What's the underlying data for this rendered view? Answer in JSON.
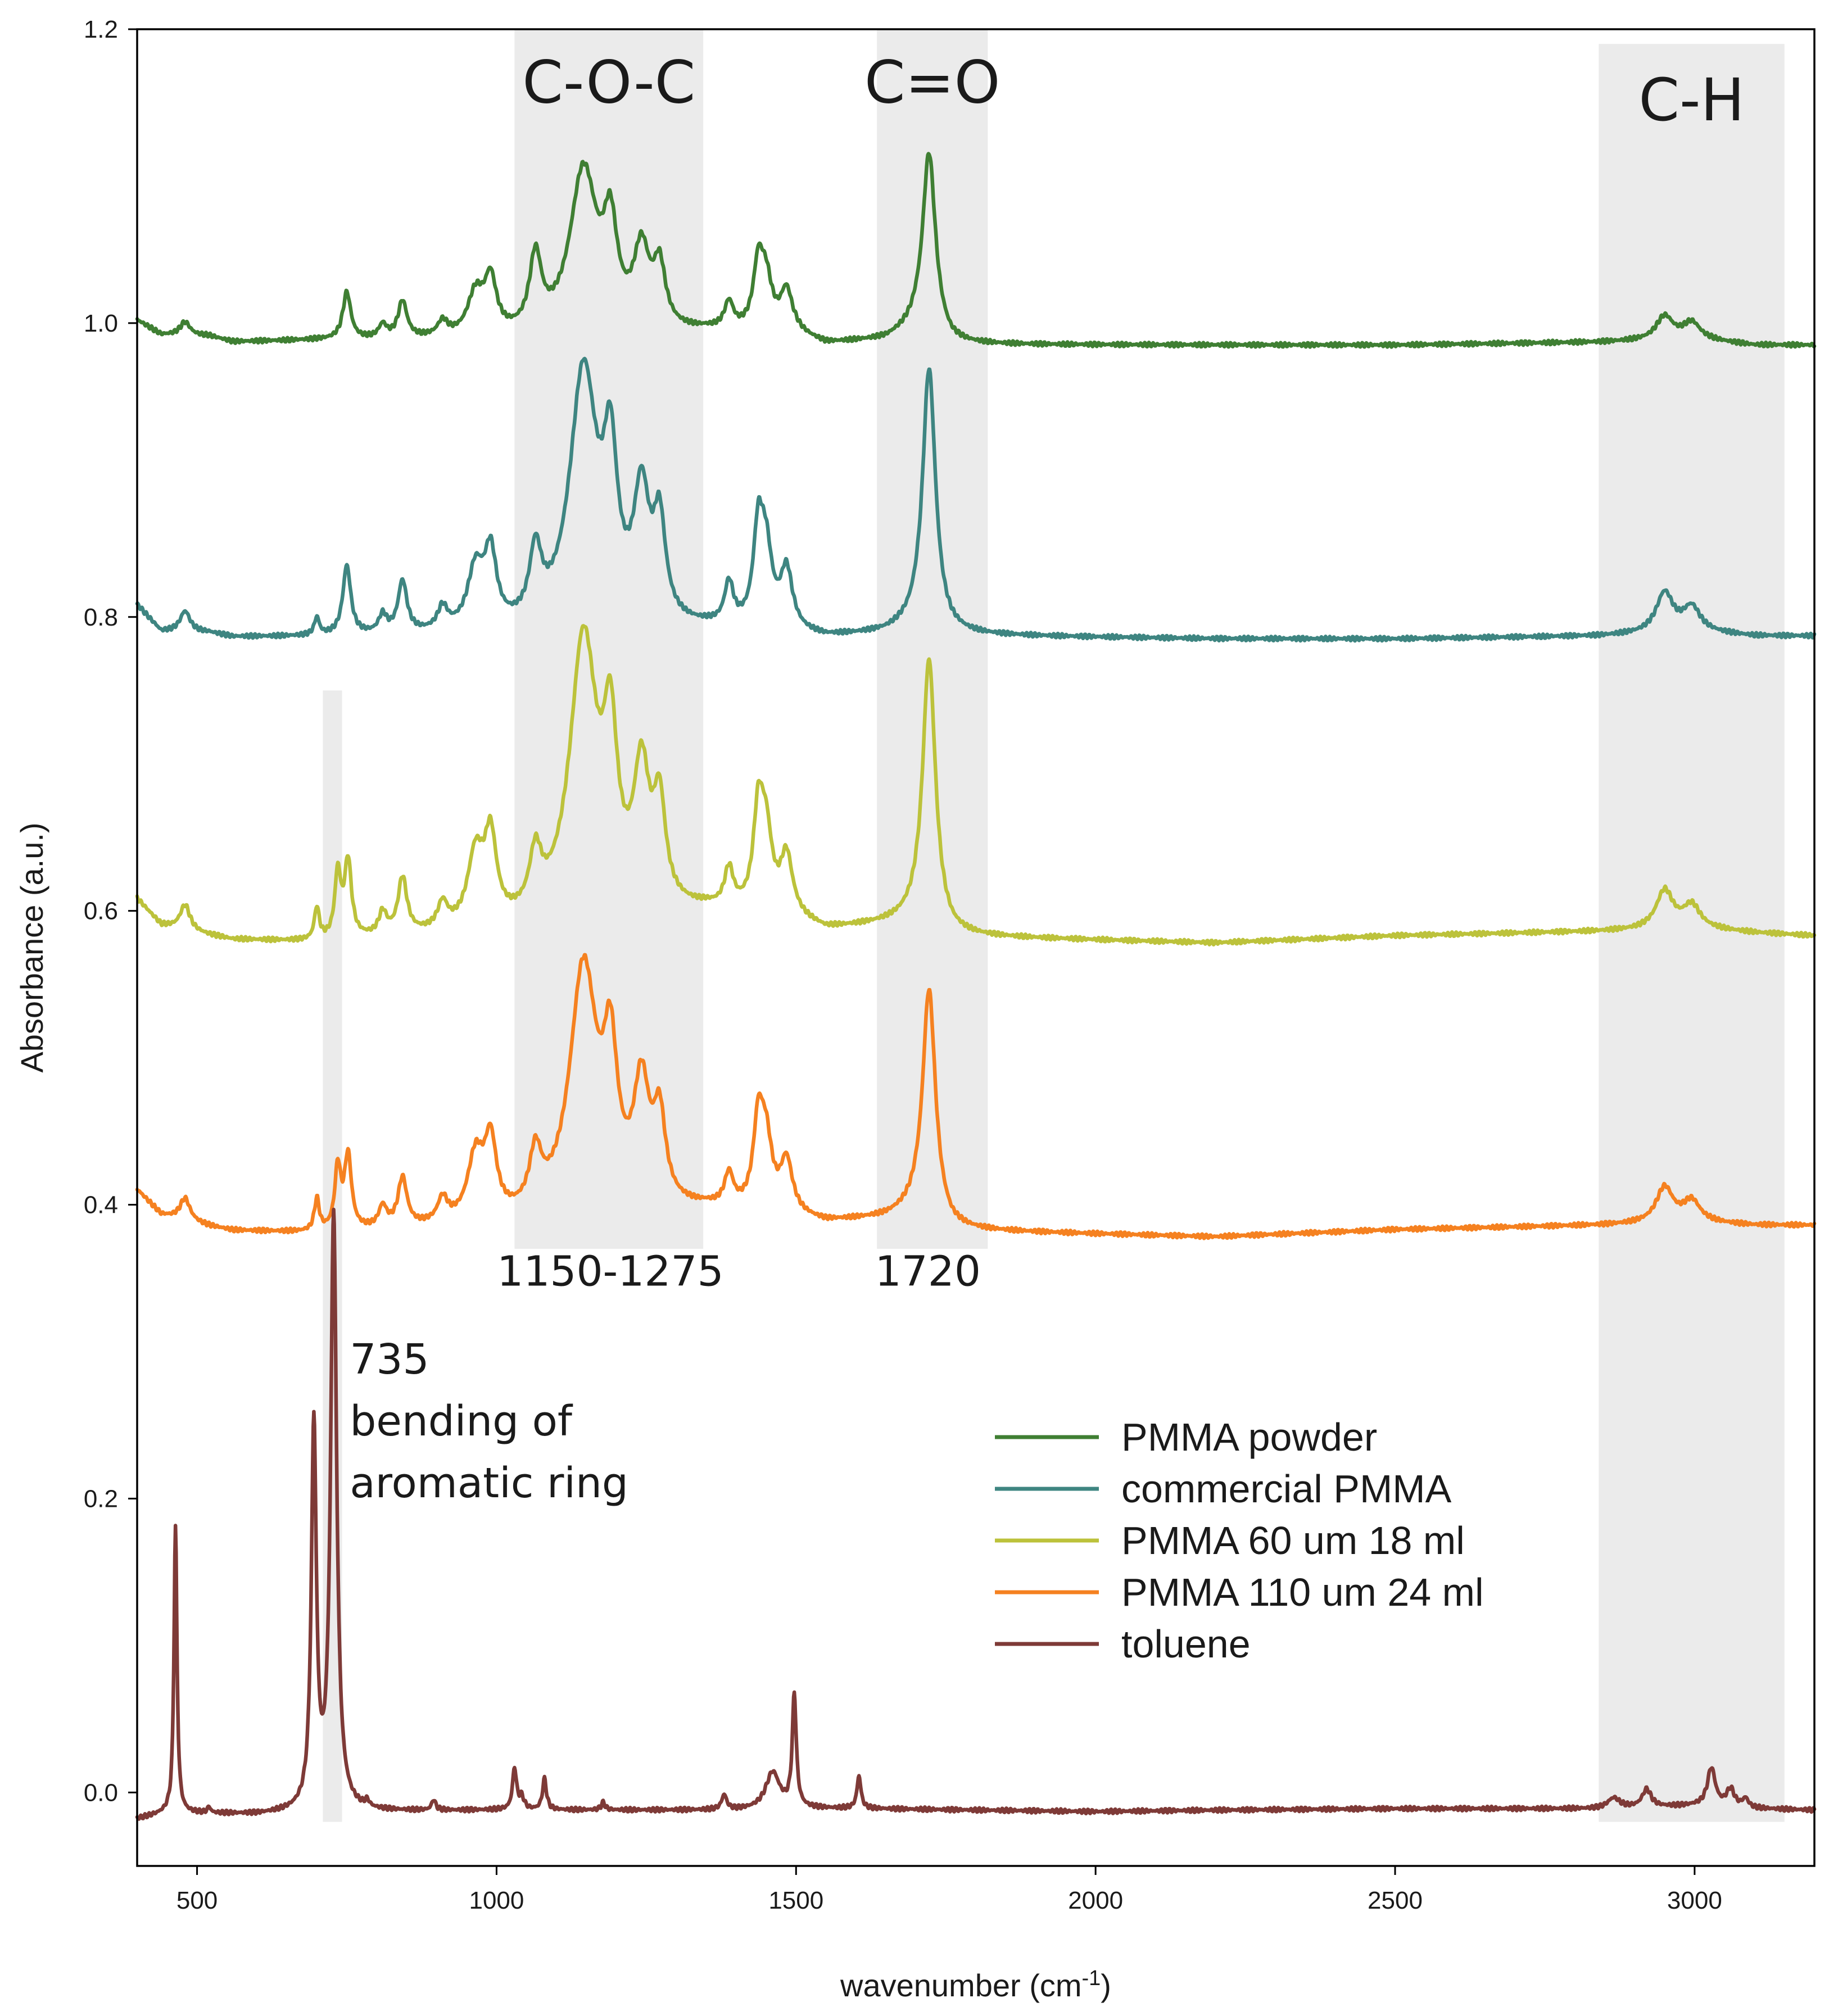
{
  "chart_data": {
    "type": "line",
    "title": "",
    "xlabel": "wavenumber (cm",
    "xlabel_sup": "-1",
    "xlabel_close": ")",
    "ylabel": "Absorbance (a.u.)",
    "xlim": [
      400,
      3200
    ],
    "ylim": [
      -0.05,
      1.2
    ],
    "x_ticks": [
      500,
      1000,
      1500,
      2000,
      2500,
      3000
    ],
    "x_tick_labels": [
      "500",
      "1000",
      "1500",
      "2000",
      "2500",
      "3000"
    ],
    "y_ticks": [
      0.0,
      0.2,
      0.4,
      0.6,
      0.8,
      1.0,
      1.2
    ],
    "y_tick_labels": [
      "0.0",
      "0.2",
      "0.4",
      "0.6",
      "0.8",
      "1.0",
      "1.2"
    ],
    "grid": false,
    "legend_position": "center-right",
    "shaded_regions": [
      {
        "name": "c-o-c",
        "label": "C-O-C",
        "x0": 1030,
        "x1": 1345,
        "y0": 0.37,
        "y1": 1.2
      },
      {
        "name": "c-o",
        "label": "C=O",
        "x0": 1635,
        "x1": 1820,
        "y0": 0.37,
        "y1": 1.2
      },
      {
        "name": "c-h",
        "label": "C-H",
        "x0": 2840,
        "x1": 3150,
        "y0": -0.02,
        "y1": 1.19
      },
      {
        "name": "aromatic",
        "label": "",
        "x0": 710,
        "x1": 742,
        "y0": -0.02,
        "y1": 0.75
      }
    ],
    "annotations": [
      {
        "name": "range-1150-1275",
        "text": "1150-1275",
        "x": 1190,
        "y": 0.345
      },
      {
        "name": "peak-1720",
        "text": "1720",
        "x": 1720,
        "y": 0.345
      },
      {
        "name": "note-735-line1",
        "text": "735",
        "x": 755,
        "y": 0.285
      },
      {
        "name": "note-735-line2",
        "text": "bending of",
        "x": 755,
        "y": 0.243
      },
      {
        "name": "note-735-line3",
        "text": "aromatic ring",
        "x": 755,
        "y": 0.201
      }
    ],
    "series": [
      {
        "name": "PMMA powder",
        "color": "#3f7f33",
        "baseline": [
          [
            400,
            1.002
          ],
          [
            440,
            0.992
          ],
          [
            520,
            0.991
          ],
          [
            560,
            0.987
          ],
          [
            700,
            0.988
          ],
          [
            1000,
            0.988
          ],
          [
            1200,
            0.988
          ],
          [
            1350,
            0.993
          ],
          [
            1500,
            0.991
          ],
          [
            1550,
            0.985
          ],
          [
            1650,
            0.988
          ],
          [
            1700,
            0.995
          ],
          [
            1760,
            0.985
          ],
          [
            2200,
            0.985
          ],
          [
            2500,
            0.985
          ],
          [
            2840,
            0.987
          ],
          [
            3000,
            0.989
          ],
          [
            3100,
            0.985
          ],
          [
            3200,
            0.985
          ]
        ],
        "peaks": [
          [
            480,
            0.009,
            10
          ],
          [
            750,
            0.032,
            8
          ],
          [
            810,
            0.009,
            8
          ],
          [
            843,
            0.025,
            9
          ],
          [
            910,
            0.01,
            10
          ],
          [
            965,
            0.028,
            16
          ],
          [
            990,
            0.036,
            12
          ],
          [
            1065,
            0.05,
            12
          ],
          [
            1145,
            0.112,
            28
          ],
          [
            1190,
            0.063,
            14
          ],
          [
            1242,
            0.053,
            16
          ],
          [
            1272,
            0.04,
            12
          ],
          [
            1388,
            0.018,
            9
          ],
          [
            1437,
            0.042,
            10
          ],
          [
            1450,
            0.032,
            12
          ],
          [
            1484,
            0.028,
            12
          ],
          [
            1722,
            0.124,
            13
          ],
          [
            2950,
            0.016,
            17
          ],
          [
            2995,
            0.011,
            17
          ]
        ]
      },
      {
        "name": "commercial PMMA",
        "color": "#3e8581",
        "baseline": [
          [
            400,
            0.808
          ],
          [
            440,
            0.79
          ],
          [
            520,
            0.789
          ],
          [
            560,
            0.786
          ],
          [
            700,
            0.786
          ],
          [
            1000,
            0.787
          ],
          [
            1200,
            0.787
          ],
          [
            1350,
            0.79
          ],
          [
            1500,
            0.787
          ],
          [
            1550,
            0.785
          ],
          [
            1650,
            0.788
          ],
          [
            1700,
            0.792
          ],
          [
            1760,
            0.787
          ],
          [
            2200,
            0.785
          ],
          [
            2500,
            0.785
          ],
          [
            2840,
            0.787
          ],
          [
            3000,
            0.79
          ],
          [
            3100,
            0.787
          ],
          [
            3200,
            0.787
          ]
        ],
        "peaks": [
          [
            480,
            0.014,
            10
          ],
          [
            700,
            0.012,
            5
          ],
          [
            750,
            0.047,
            8
          ],
          [
            810,
            0.012,
            8
          ],
          [
            843,
            0.035,
            9
          ],
          [
            910,
            0.015,
            10
          ],
          [
            965,
            0.04,
            16
          ],
          [
            990,
            0.048,
            12
          ],
          [
            1065,
            0.046,
            12
          ],
          [
            1145,
            0.175,
            28
          ],
          [
            1190,
            0.1,
            14
          ],
          [
            1242,
            0.085,
            16
          ],
          [
            1272,
            0.064,
            12
          ],
          [
            1388,
            0.028,
            9
          ],
          [
            1437,
            0.062,
            10
          ],
          [
            1450,
            0.048,
            12
          ],
          [
            1484,
            0.04,
            12
          ],
          [
            1722,
            0.178,
            13
          ],
          [
            2950,
            0.027,
            17
          ],
          [
            2995,
            0.016,
            17
          ]
        ]
      },
      {
        "name": "PMMA 60 um 18 ml",
        "color": "#bcc23b",
        "baseline": [
          [
            400,
            0.608
          ],
          [
            440,
            0.59
          ],
          [
            520,
            0.583
          ],
          [
            560,
            0.58
          ],
          [
            700,
            0.578
          ],
          [
            1000,
            0.585
          ],
          [
            1200,
            0.592
          ],
          [
            1350,
            0.598
          ],
          [
            1500,
            0.592
          ],
          [
            1550,
            0.586
          ],
          [
            1650,
            0.59
          ],
          [
            1700,
            0.592
          ],
          [
            1760,
            0.582
          ],
          [
            2200,
            0.578
          ],
          [
            2500,
            0.583
          ],
          [
            2840,
            0.586
          ],
          [
            3000,
            0.588
          ],
          [
            3100,
            0.585
          ],
          [
            3200,
            0.583
          ]
        ],
        "peaks": [
          [
            480,
            0.017,
            10
          ],
          [
            700,
            0.022,
            5
          ],
          [
            735,
            0.044,
            6
          ],
          [
            752,
            0.052,
            7
          ],
          [
            810,
            0.015,
            8
          ],
          [
            843,
            0.038,
            9
          ],
          [
            910,
            0.017,
            10
          ],
          [
            965,
            0.048,
            16
          ],
          [
            990,
            0.056,
            12
          ],
          [
            1065,
            0.038,
            12
          ],
          [
            1145,
            0.19,
            28
          ],
          [
            1190,
            0.104,
            14
          ],
          [
            1242,
            0.09,
            16
          ],
          [
            1272,
            0.065,
            12
          ],
          [
            1388,
            0.026,
            9
          ],
          [
            1437,
            0.063,
            10
          ],
          [
            1450,
            0.05,
            12
          ],
          [
            1484,
            0.04,
            12
          ],
          [
            1722,
            0.182,
            13
          ],
          [
            2950,
            0.026,
            17
          ],
          [
            2995,
            0.015,
            17
          ]
        ]
      },
      {
        "name": "PMMA 110 um 24 ml",
        "color": "#f58120",
        "baseline": [
          [
            400,
            0.41
          ],
          [
            440,
            0.393
          ],
          [
            520,
            0.385
          ],
          [
            560,
            0.382
          ],
          [
            700,
            0.38
          ],
          [
            1000,
            0.385
          ],
          [
            1200,
            0.39
          ],
          [
            1350,
            0.395
          ],
          [
            1500,
            0.39
          ],
          [
            1550,
            0.387
          ],
          [
            1650,
            0.39
          ],
          [
            1700,
            0.394
          ],
          [
            1760,
            0.382
          ],
          [
            2200,
            0.378
          ],
          [
            2500,
            0.383
          ],
          [
            2840,
            0.386
          ],
          [
            3000,
            0.388
          ],
          [
            3100,
            0.386
          ],
          [
            3200,
            0.386
          ]
        ],
        "peaks": [
          [
            480,
            0.015,
            10
          ],
          [
            700,
            0.022,
            5
          ],
          [
            735,
            0.042,
            6
          ],
          [
            752,
            0.05,
            7
          ],
          [
            810,
            0.014,
            8
          ],
          [
            843,
            0.033,
            9
          ],
          [
            910,
            0.016,
            10
          ],
          [
            965,
            0.043,
            16
          ],
          [
            990,
            0.05,
            12
          ],
          [
            1065,
            0.037,
            12
          ],
          [
            1145,
            0.168,
            28
          ],
          [
            1190,
            0.092,
            14
          ],
          [
            1242,
            0.08,
            16
          ],
          [
            1272,
            0.056,
            12
          ],
          [
            1388,
            0.022,
            9
          ],
          [
            1437,
            0.056,
            10
          ],
          [
            1450,
            0.044,
            12
          ],
          [
            1484,
            0.035,
            12
          ],
          [
            1722,
            0.156,
            13
          ],
          [
            2950,
            0.024,
            17
          ],
          [
            2995,
            0.014,
            17
          ]
        ]
      },
      {
        "name": "toluene",
        "color": "#7e3a37",
        "baseline": [
          [
            400,
            -0.018
          ],
          [
            450,
            -0.014
          ],
          [
            600,
            -0.015
          ],
          [
            700,
            -0.013
          ],
          [
            800,
            -0.013
          ],
          [
            1000,
            -0.012
          ],
          [
            1200,
            -0.012
          ],
          [
            1400,
            -0.012
          ],
          [
            1500,
            -0.011
          ],
          [
            1600,
            -0.011
          ],
          [
            1800,
            -0.012
          ],
          [
            2000,
            -0.013
          ],
          [
            2200,
            -0.012
          ],
          [
            2500,
            -0.011
          ],
          [
            2840,
            -0.011
          ],
          [
            3000,
            -0.009
          ],
          [
            3100,
            -0.011
          ],
          [
            3200,
            -0.012
          ]
        ],
        "peaks": [
          [
            464,
            0.195,
            3
          ],
          [
            520,
            0.004,
            3
          ],
          [
            695,
            0.26,
            5
          ],
          [
            728,
            0.405,
            6
          ],
          [
            784,
            0.004,
            4
          ],
          [
            895,
            0.007,
            4
          ],
          [
            1030,
            0.028,
            4
          ],
          [
            1042,
            0.008,
            5
          ],
          [
            1080,
            0.021,
            4
          ],
          [
            1178,
            0.005,
            4
          ],
          [
            1380,
            0.01,
            5
          ],
          [
            1461,
            0.025,
            14
          ],
          [
            1497,
            0.076,
            4
          ],
          [
            1605,
            0.022,
            4
          ],
          [
            2865,
            0.007,
            12
          ],
          [
            2920,
            0.012,
            9
          ],
          [
            3028,
            0.026,
            8
          ],
          [
            3060,
            0.012,
            8
          ],
          [
            3085,
            0.006,
            6
          ]
        ]
      }
    ]
  }
}
